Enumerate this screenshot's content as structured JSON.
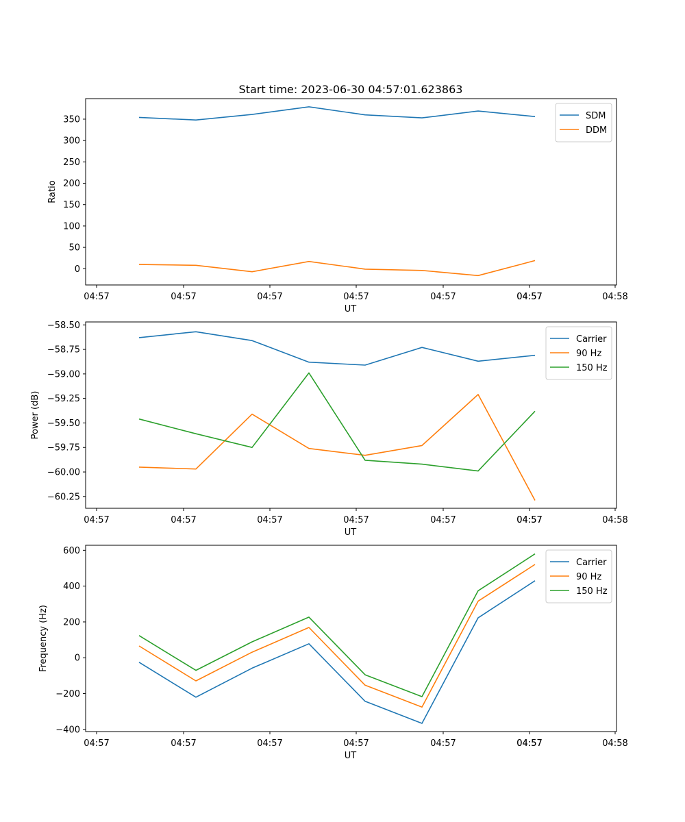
{
  "figure": {
    "title": "Start time: 2023-06-30 04:57:01.623863"
  },
  "chart_data": [
    {
      "type": "line",
      "xlabel": "UT",
      "ylabel": "Ratio",
      "x_tick_labels": [
        "04:57",
        "04:57",
        "04:57",
        "04:57",
        "04:57",
        "04:57",
        "04:57",
        "04:58"
      ],
      "yticks": [
        0,
        50,
        100,
        150,
        200,
        250,
        300,
        350
      ],
      "ylim": [
        -38,
        398
      ],
      "legend_position": "top-right",
      "series": [
        {
          "name": "SDM",
          "color": "#1f77b4",
          "values": [
            354,
            348,
            361,
            379,
            360,
            353,
            369,
            356
          ]
        },
        {
          "name": "DDM",
          "color": "#ff7f0e",
          "values": [
            10,
            8,
            -7,
            17,
            -1,
            -4,
            -16,
            19
          ]
        }
      ]
    },
    {
      "type": "line",
      "xlabel": "UT",
      "ylabel": "Power (dB)",
      "x_tick_labels": [
        "04:57",
        "04:57",
        "04:57",
        "04:57",
        "04:57",
        "04:57",
        "04:57",
        "04:58"
      ],
      "yticks": [
        -58.5,
        -58.75,
        -59.0,
        -59.25,
        -59.5,
        -59.75,
        -60.0,
        -60.25
      ],
      "ytick_labels": [
        "−58.50",
        "−58.75",
        "−59.00",
        "−59.25",
        "−59.50",
        "−59.75",
        "−60.00",
        "−60.25"
      ],
      "ylim": [
        -60.37,
        -58.47
      ],
      "legend_position": "top-right",
      "series": [
        {
          "name": "Carrier",
          "color": "#1f77b4",
          "values": [
            -58.63,
            -58.57,
            -58.66,
            -58.88,
            -58.91,
            -58.73,
            -58.87,
            -58.81
          ]
        },
        {
          "name": "90 Hz",
          "color": "#ff7f0e",
          "values": [
            -59.95,
            -59.97,
            -59.41,
            -59.76,
            -59.83,
            -59.73,
            -59.21,
            -60.29
          ]
        },
        {
          "name": "150 Hz",
          "color": "#2ca02c",
          "values": [
            -59.46,
            -59.61,
            -59.75,
            -58.99,
            -59.88,
            -59.92,
            -59.99,
            -59.38
          ]
        }
      ]
    },
    {
      "type": "line",
      "xlabel": "UT",
      "ylabel": "Frequency (Hz)",
      "x_tick_labels": [
        "04:57",
        "04:57",
        "04:57",
        "04:57",
        "04:57",
        "04:57",
        "04:57",
        "04:58"
      ],
      "yticks": [
        -400,
        -200,
        0,
        200,
        400,
        600
      ],
      "ytick_labels": [
        "−400",
        "−200",
        "0",
        "200",
        "400",
        "600"
      ],
      "ylim": [
        -412,
        628
      ],
      "legend_position": "top-right",
      "series": [
        {
          "name": "Carrier",
          "color": "#1f77b4",
          "values": [
            -25,
            -220,
            -58,
            78,
            -243,
            -366,
            223,
            430
          ]
        },
        {
          "name": "90 Hz",
          "color": "#ff7f0e",
          "values": [
            66,
            -129,
            31,
            169,
            -153,
            -275,
            316,
            521
          ]
        },
        {
          "name": "150 Hz",
          "color": "#2ca02c",
          "values": [
            124,
            -70,
            89,
            227,
            -95,
            -217,
            374,
            580
          ]
        }
      ]
    }
  ]
}
